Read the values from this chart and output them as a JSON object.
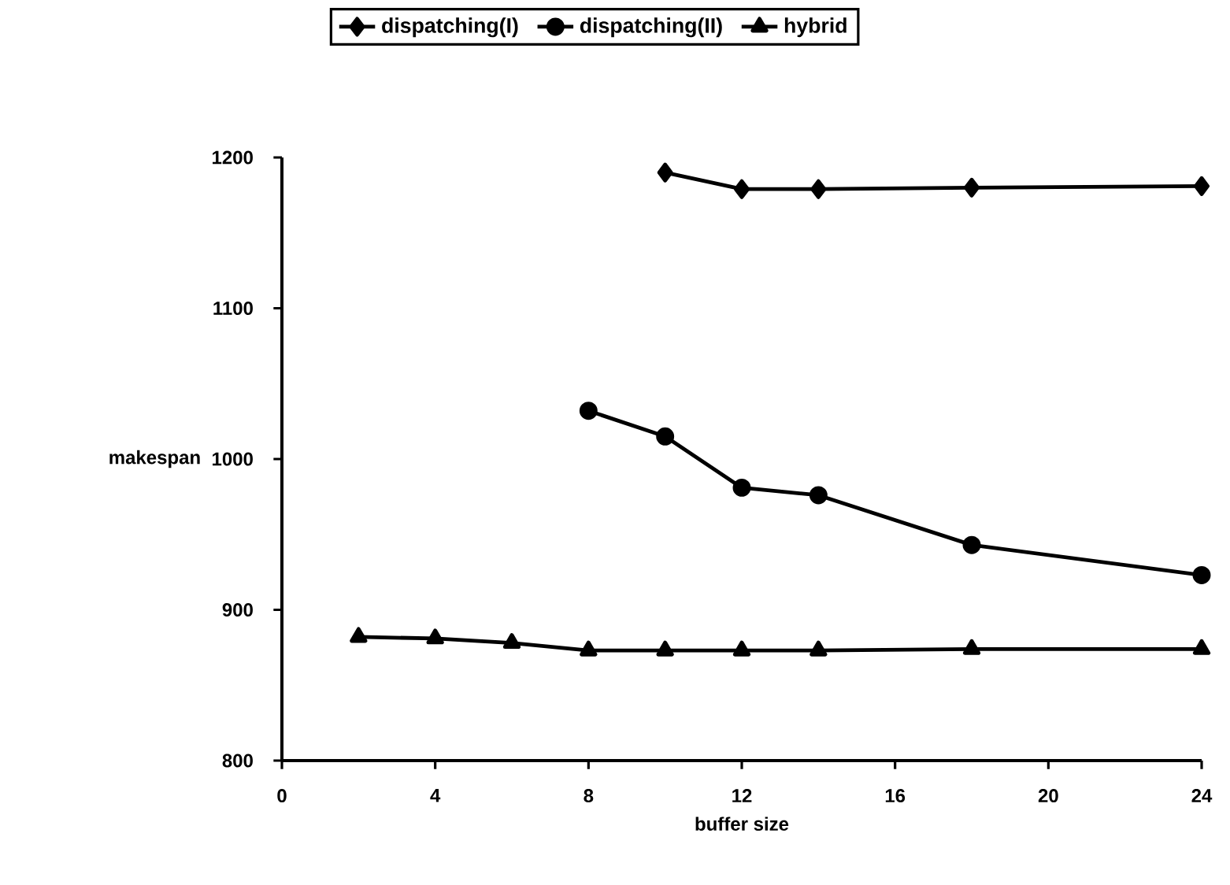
{
  "chart_data": {
    "type": "line",
    "xlabel": "buffer size",
    "ylabel": "makespan",
    "xlim": [
      0,
      24
    ],
    "xticks": [
      0,
      4,
      8,
      12,
      16,
      20,
      24
    ],
    "ylim": [
      800,
      1200
    ],
    "yticks": [
      800,
      900,
      1000,
      1100,
      1200
    ],
    "legend": "top",
    "line_style": "solid",
    "series": [
      {
        "name": "dispatching(I)",
        "color": "#000000",
        "marker": "diamond",
        "x": [
          10,
          12,
          14,
          18,
          24
        ],
        "values": [
          1190,
          1179,
          1179,
          1180,
          1181
        ]
      },
      {
        "name": "dispatching(II)",
        "color": "#000000",
        "marker": "circle",
        "x": [
          8,
          10,
          12,
          14,
          18,
          24
        ],
        "values": [
          1032,
          1015,
          981,
          976,
          943,
          923
        ]
      },
      {
        "name": "hybrid",
        "color": "#000000",
        "marker": "triangle",
        "x": [
          2,
          4,
          6,
          8,
          10,
          12,
          14,
          18,
          24
        ],
        "values": [
          882,
          881,
          878,
          873,
          873,
          873,
          873,
          874,
          874
        ]
      }
    ]
  }
}
